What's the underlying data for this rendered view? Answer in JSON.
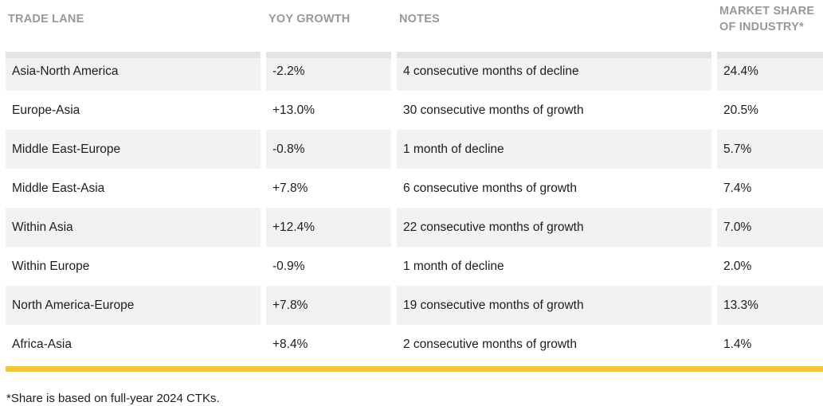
{
  "chart_data": {
    "type": "table",
    "title": "",
    "columns": [
      "TRADE LANE",
      "YOY GROWTH",
      "NOTES",
      "MARKET SHARE OF INDUSTRY*"
    ],
    "rows": [
      {
        "lane": "Asia-North America",
        "growth": "-2.2%",
        "notes": "4 consecutive months of decline",
        "share": "24.4%"
      },
      {
        "lane": "Europe-Asia",
        "growth": "+13.0%",
        "notes": "30 consecutive months of growth",
        "share": "20.5%"
      },
      {
        "lane": "Middle East-Europe",
        "growth": "-0.8%",
        "notes": "1 month of decline",
        "share": "5.7%"
      },
      {
        "lane": "Middle East-Asia",
        "growth": "+7.8%",
        "notes": "6 consecutive months of growth",
        "share": "7.4%"
      },
      {
        "lane": "Within Asia",
        "growth": "+12.4%",
        "notes": "22 consecutive months of growth",
        "share": "7.0%"
      },
      {
        "lane": "Within Europe",
        "growth": "-0.9%",
        "notes": "1 month of decline",
        "share": "2.0%"
      },
      {
        "lane": "North America-Europe",
        "growth": "+7.8%",
        "notes": "19 consecutive months of growth",
        "share": "13.3%"
      },
      {
        "lane": "Africa-Asia",
        "growth": "+8.4%",
        "notes": "2 consecutive months of growth",
        "share": "1.4%"
      }
    ]
  },
  "footnote": "*Share is based on full-year 2024 CTKs.",
  "colors": {
    "accent_bar": "#f0c63c",
    "row_shaded": "#f2f2f2",
    "row_top_band": "#e4e4e5",
    "header_text": "#98989b",
    "body_text": "#1d1d1f"
  }
}
